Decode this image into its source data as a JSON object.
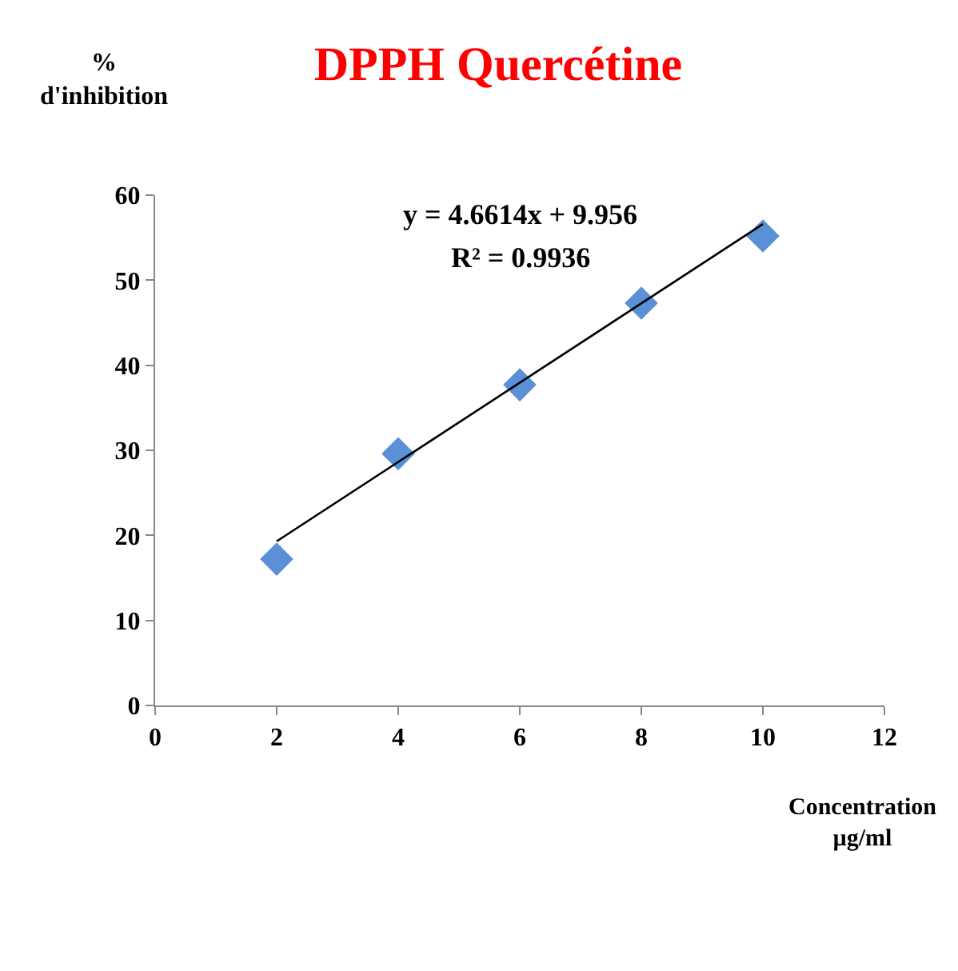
{
  "chart_data": {
    "type": "scatter",
    "title": "DPPH Quercétine",
    "xlabel": "Concentration\nµg/ml",
    "ylabel": "%\nd'inhibition",
    "x": [
      2,
      4,
      6,
      8,
      10
    ],
    "series": [
      {
        "color": "#5b8fd6",
        "values": [
          17.2,
          29.6,
          37.7,
          47.3,
          55.2
        ],
        "marker": "diamond"
      },
      {
        "type": "line",
        "x": [
          2,
          10
        ],
        "color": "#000000",
        "values": [
          19.3,
          56.6
        ],
        "marker": "none",
        "line_style": "solid"
      }
    ],
    "annotations": [
      "y = 4.6614x + 9.956",
      "R² = 0.9936"
    ],
    "xlim": [
      0,
      12
    ],
    "xticks": [
      0,
      2,
      4,
      6,
      8,
      10,
      12
    ],
    "ylim": [
      0,
      60
    ],
    "yticks": [
      0,
      10,
      20,
      30,
      40,
      50,
      60
    ],
    "grid": false
  }
}
